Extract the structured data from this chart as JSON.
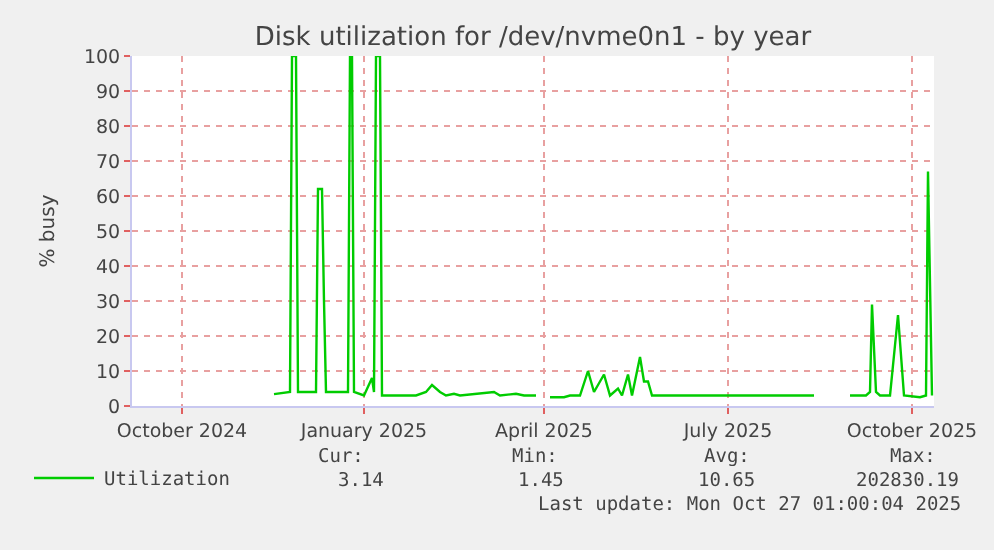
{
  "chart_data": {
    "type": "line",
    "title": "Disk utilization for /dev/nvme0n1 - by year",
    "ylabel": "% busy",
    "xlim": [
      "2024-09-21",
      "2025-10-27"
    ],
    "xticks": [
      {
        "value": "2024-10-16",
        "label": "October 2024"
      },
      {
        "value": "2025-01-15",
        "label": "January 2025"
      },
      {
        "value": "2025-04-15",
        "label": "April 2025"
      },
      {
        "value": "2025-07-16",
        "label": "July 2025"
      },
      {
        "value": "2025-10-16",
        "label": "October 2025"
      }
    ],
    "ylim": [
      0,
      100
    ],
    "yticks": [
      0,
      10,
      20,
      30,
      40,
      50,
      60,
      70,
      80,
      90,
      100
    ],
    "grid": true,
    "legend": "bottom left",
    "x": [
      "2024-12-01",
      "2024-12-09",
      "2024-12-10",
      "2024-12-12",
      "2024-12-13",
      "2024-12-22",
      "2024-12-23",
      "2024-12-25",
      "2024-12-26",
      "2024-12-27",
      "2025-01-07",
      "2025-01-08",
      "2025-01-09",
      "2025-01-10",
      "2025-01-15",
      "2025-01-19",
      "2025-01-20",
      "2025-01-21",
      "2025-01-23",
      "2025-01-24",
      "2025-02-10",
      "2025-02-15",
      "2025-02-18",
      "2025-02-22",
      "2025-02-25",
      "2025-03-01",
      "2025-03-04",
      "2025-03-21",
      "2025-03-24",
      "2025-04-01",
      "2025-04-05",
      "2025-04-11",
      "2025-04-12",
      "2025-04-18",
      "2025-04-25",
      "2025-04-28",
      "2025-05-03",
      "2025-05-07",
      "2025-05-10",
      "2025-05-15",
      "2025-05-18",
      "2025-05-22",
      "2025-05-24",
      "2025-05-27",
      "2025-05-29",
      "2025-06-02",
      "2025-06-04",
      "2025-06-06",
      "2025-06-08",
      "2025-08-28",
      "2025-08-29",
      "2025-09-15",
      "2025-09-23",
      "2025-09-25",
      "2025-09-26",
      "2025-09-28",
      "2025-09-30",
      "2025-10-05",
      "2025-10-09",
      "2025-10-12",
      "2025-10-20",
      "2025-10-23",
      "2025-10-24",
      "2025-10-26"
    ],
    "series": [
      {
        "name": "Utilization",
        "color": "#00cc00",
        "values": [
          3.4,
          4,
          100,
          100,
          4,
          4,
          62,
          62,
          30,
          4,
          4,
          100,
          100,
          4,
          3,
          8,
          4,
          100,
          100,
          3,
          3,
          4,
          6,
          4,
          3,
          3.5,
          3,
          4,
          3,
          3.5,
          3,
          3,
          null,
          2.5,
          2.5,
          3,
          3,
          10,
          4,
          9,
          3,
          5,
          3,
          9,
          3,
          14,
          7,
          7,
          3,
          3,
          null,
          3,
          3,
          4,
          29,
          4,
          3,
          3,
          26,
          3,
          2.5,
          3,
          67,
          3
        ]
      }
    ],
    "annotations": [
      "Cur:",
      "Min:",
      "Avg:",
      "Max:",
      "3.14",
      "1.45",
      "10.65",
      "202830.19",
      "Last update: Mon Oct 27 01:00:04 2025"
    ]
  }
}
